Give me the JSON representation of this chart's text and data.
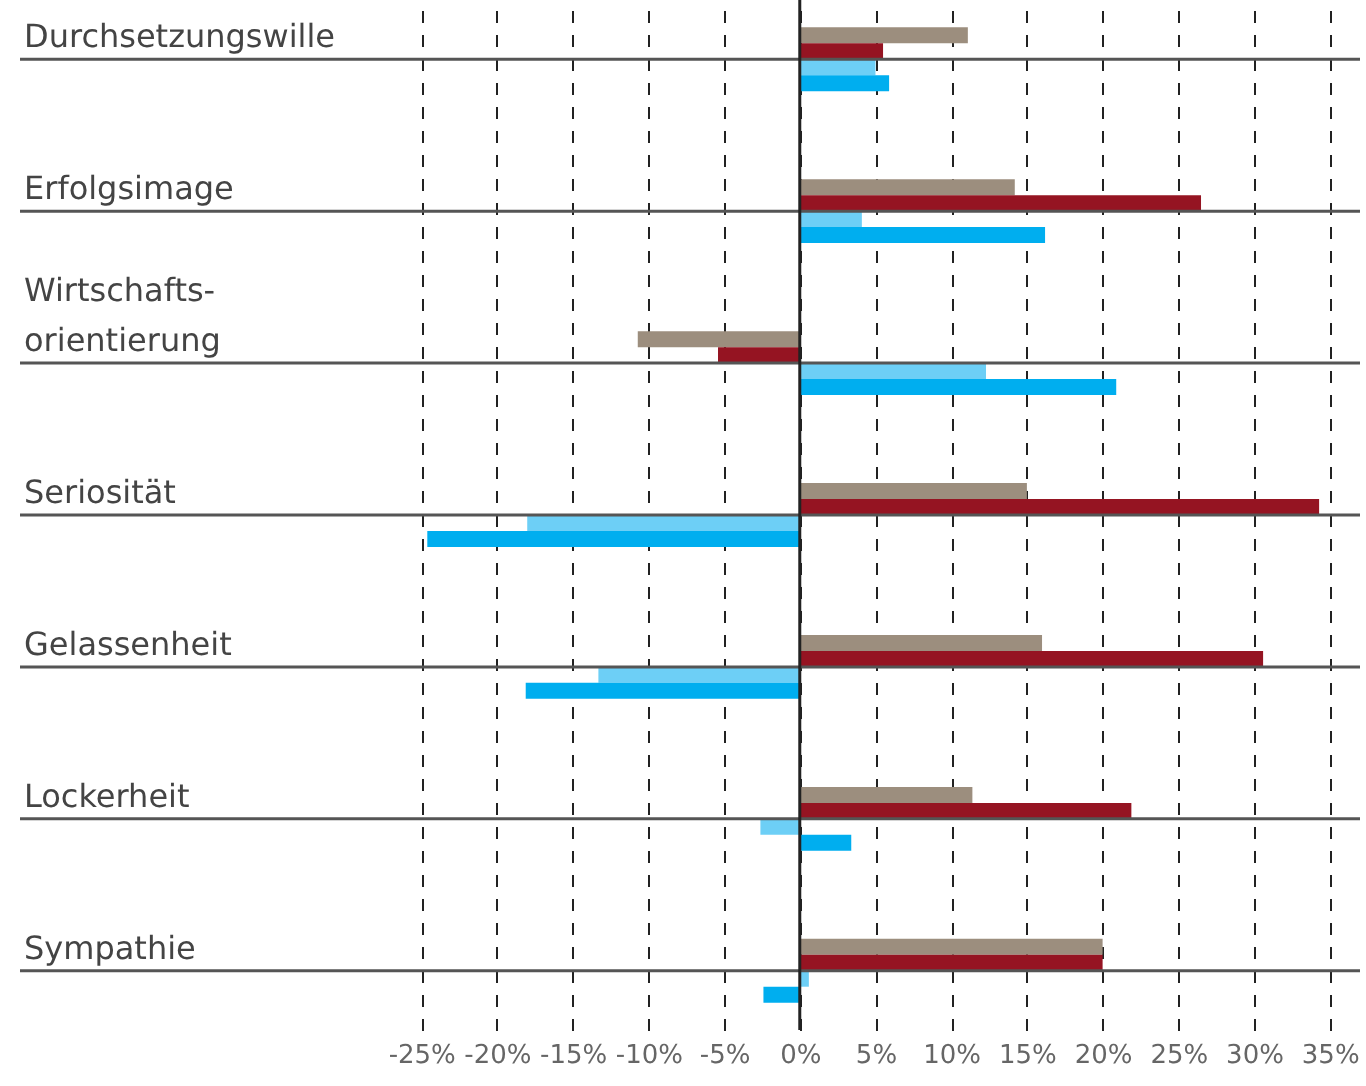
{
  "chart_data": {
    "type": "bar",
    "orientation": "horizontal",
    "categories": [
      "Durchsetzungswille",
      "Erfolgsimage",
      "Wirtschafts-\norientierung",
      "Seriosität",
      "Gelassenheit",
      "Lockerheit",
      "Sympathie"
    ],
    "series": [
      {
        "color": "#9c8e7e",
        "values": [
          11.1,
          14.2,
          -10.7,
          15.0,
          16.0,
          11.4,
          20.0
        ]
      },
      {
        "color": "#951422",
        "values": [
          5.5,
          26.5,
          -5.4,
          34.3,
          30.6,
          21.9,
          20.0
        ]
      },
      {
        "color": "#6dcff6",
        "values": [
          5.0,
          4.1,
          12.3,
          -18.0,
          -13.3,
          -2.6,
          0.6
        ]
      },
      {
        "color": "#00aeef",
        "values": [
          5.9,
          16.2,
          20.9,
          -24.6,
          -18.1,
          3.4,
          -2.4
        ]
      }
    ],
    "xlim": [
      -51.5,
      37
    ],
    "xticks": [
      {
        "value": -25,
        "label": "-25%"
      },
      {
        "value": -20,
        "label": "-20%"
      },
      {
        "value": -15,
        "label": "-15%"
      },
      {
        "value": -10,
        "label": "-10%"
      },
      {
        "value": -5,
        "label": "-5%"
      },
      {
        "value": 0,
        "label": "0%"
      },
      {
        "value": 5,
        "label": "5%"
      },
      {
        "value": 10,
        "label": "10%"
      },
      {
        "value": 15,
        "label": "15%"
      },
      {
        "value": 20,
        "label": "20%"
      },
      {
        "value": 25,
        "label": "25%"
      },
      {
        "value": 30,
        "label": "30%"
      },
      {
        "value": 35,
        "label": "35%"
      }
    ],
    "grid": "x",
    "ref_lines": [
      {
        "axis": "x",
        "value": 0,
        "color": "#222222",
        "line_style": "solid"
      }
    ],
    "legend": false
  }
}
